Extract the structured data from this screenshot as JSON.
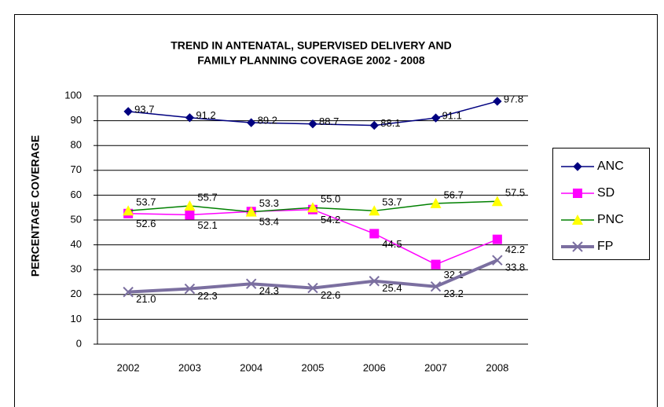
{
  "chart_data": {
    "type": "line",
    "title": [
      "TREND IN ANTENATAL, SUPERVISED DELIVERY AND",
      "FAMILY PLANNING COVERAGE 2002 - 2008"
    ],
    "y_label": "PERCENTAGE COVERAGE",
    "categories": [
      "2002",
      "2003",
      "2004",
      "2005",
      "2006",
      "2007",
      "2008"
    ],
    "ylim": [
      0,
      100
    ],
    "yticks": [
      0,
      10,
      20,
      30,
      40,
      50,
      60,
      70,
      80,
      90,
      100
    ],
    "grid": true,
    "legend": "right",
    "series": [
      {
        "name": "ANC",
        "color": "#000080",
        "marker": "diamond",
        "marker_color": "#000080",
        "values": [
          93.7,
          91.2,
          89.2,
          88.7,
          88.1,
          91.1,
          97.8
        ],
        "value_labels": [
          "93.7",
          "91.2",
          "89.2",
          "88.7",
          "88.1",
          "91.1",
          "97.8"
        ]
      },
      {
        "name": "SD",
        "color": "#ff00ff",
        "marker": "square",
        "marker_color": "#ff00ff",
        "values": [
          52.6,
          52.1,
          53.4,
          54.2,
          44.5,
          32.1,
          42.2
        ],
        "value_labels": [
          "52.6",
          "52.1",
          "53.4",
          "54.2",
          "44.5",
          "32.1",
          "42.2"
        ]
      },
      {
        "name": "PNC",
        "color": "#008000",
        "marker": "triangle",
        "marker_color": "#ffff00",
        "values": [
          53.7,
          55.7,
          53.3,
          55.0,
          53.7,
          56.7,
          57.5
        ],
        "value_labels": [
          "53.7",
          "55.7",
          "53.3",
          "55.0",
          "53.7",
          "56.7",
          "57.5"
        ]
      },
      {
        "name": "FP",
        "color": "#7b6fa0",
        "marker": "x",
        "marker_color": "#7b6fa0",
        "values": [
          21.0,
          22.3,
          24.3,
          22.6,
          25.4,
          23.2,
          33.8
        ],
        "value_labels": [
          "21.0",
          "22.3",
          "24.3",
          "22.6",
          "25.4",
          "23.2",
          "33.8"
        ]
      }
    ]
  }
}
